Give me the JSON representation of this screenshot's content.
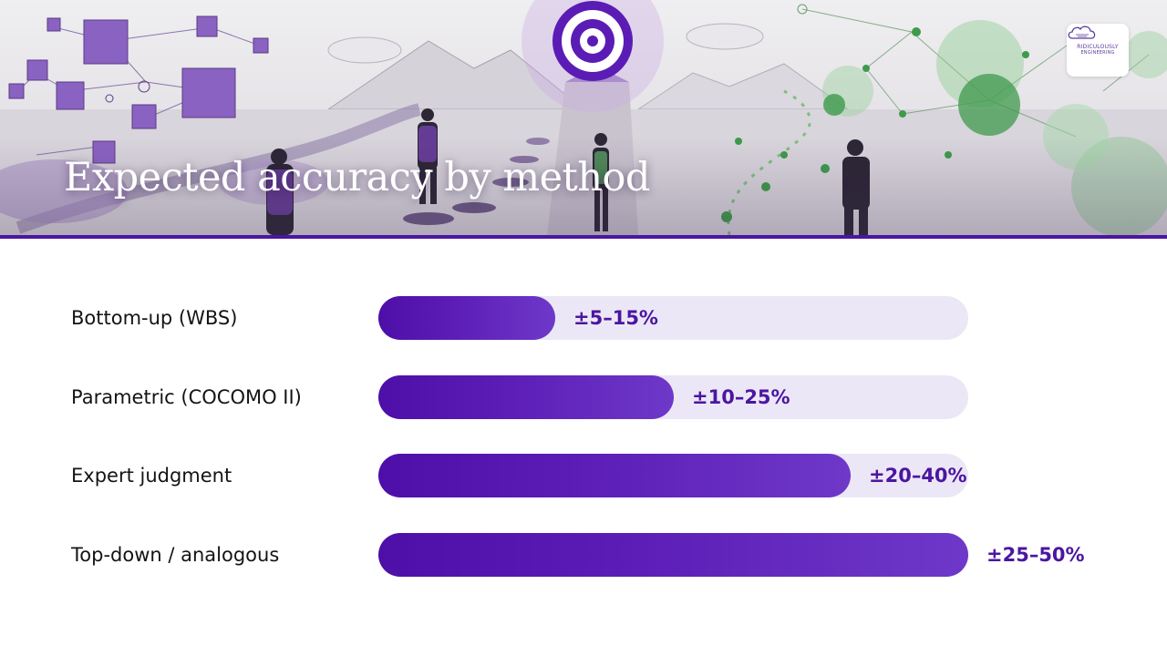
{
  "slide": {
    "title": "Expected accuracy by method",
    "logo": {
      "line1": "RIDICULOUSLY",
      "line2": "ENGINEERING"
    }
  },
  "colors": {
    "accent": "#4b16a0",
    "bar_fill": "#5b1cb5",
    "bar_track": "#ece7f6",
    "label_text": "#141414"
  },
  "chart_data": {
    "type": "bar",
    "orientation": "horizontal",
    "title": "Expected accuracy by method",
    "categories": [
      "Bottom-up (WBS)",
      "Parametric (COCOMO II)",
      "Expert judgment",
      "Top-down / analogous"
    ],
    "values": [
      15,
      25,
      40,
      50
    ],
    "data_labels": [
      "±5–15%",
      "±10–25%",
      "±20–40%",
      "±25–50%"
    ],
    "xlim": [
      0,
      50
    ],
    "grid": false,
    "legend": "none"
  }
}
